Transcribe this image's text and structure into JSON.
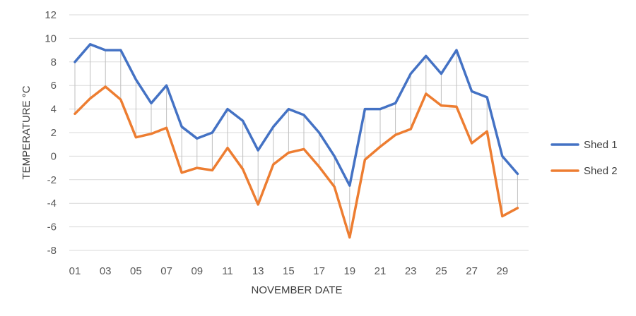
{
  "chart_data": {
    "type": "line",
    "title": "",
    "xlabel": "NOVEMBER DATE",
    "ylabel": "TEMPERATURE °C",
    "ylim": [
      -8,
      12
    ],
    "y_ticks": [
      "12",
      "10",
      "8",
      "6",
      "4",
      "2",
      "0",
      "-2",
      "-4",
      "-6",
      "-8"
    ],
    "x_tick_labels": [
      "01",
      "03",
      "05",
      "07",
      "09",
      "11",
      "13",
      "15",
      "17",
      "19",
      "21",
      "23",
      "25",
      "27",
      "29"
    ],
    "x": [
      1,
      2,
      3,
      4,
      5,
      6,
      7,
      8,
      9,
      10,
      11,
      12,
      13,
      14,
      15,
      16,
      17,
      18,
      19,
      20,
      21,
      22,
      23,
      24,
      25,
      26,
      27,
      28,
      29,
      30
    ],
    "grid": true,
    "drop_lines": true,
    "legend_position": "right",
    "series": [
      {
        "name": "Shed 1",
        "color": "#4472C4",
        "values": [
          8,
          9.5,
          9,
          9,
          6.5,
          4.5,
          6,
          2.5,
          1.5,
          2,
          4,
          3,
          0.5,
          2.5,
          4,
          3.5,
          2,
          0,
          -2.5,
          4,
          4,
          4.5,
          7,
          8.5,
          7,
          9,
          5.5,
          5,
          0,
          -1.5
        ]
      },
      {
        "name": "Shed 2",
        "color": "#ED7D31",
        "values": [
          3.6,
          4.9,
          5.9,
          4.8,
          1.6,
          1.9,
          2.4,
          -1.4,
          -1.0,
          -1.2,
          0.7,
          -1.1,
          -4.1,
          -0.7,
          0.3,
          0.6,
          -0.9,
          -2.6,
          -6.9,
          -0.3,
          0.8,
          1.8,
          2.3,
          5.3,
          4.3,
          4.2,
          1.1,
          2.1,
          -5.1,
          -4.4
        ]
      }
    ]
  }
}
